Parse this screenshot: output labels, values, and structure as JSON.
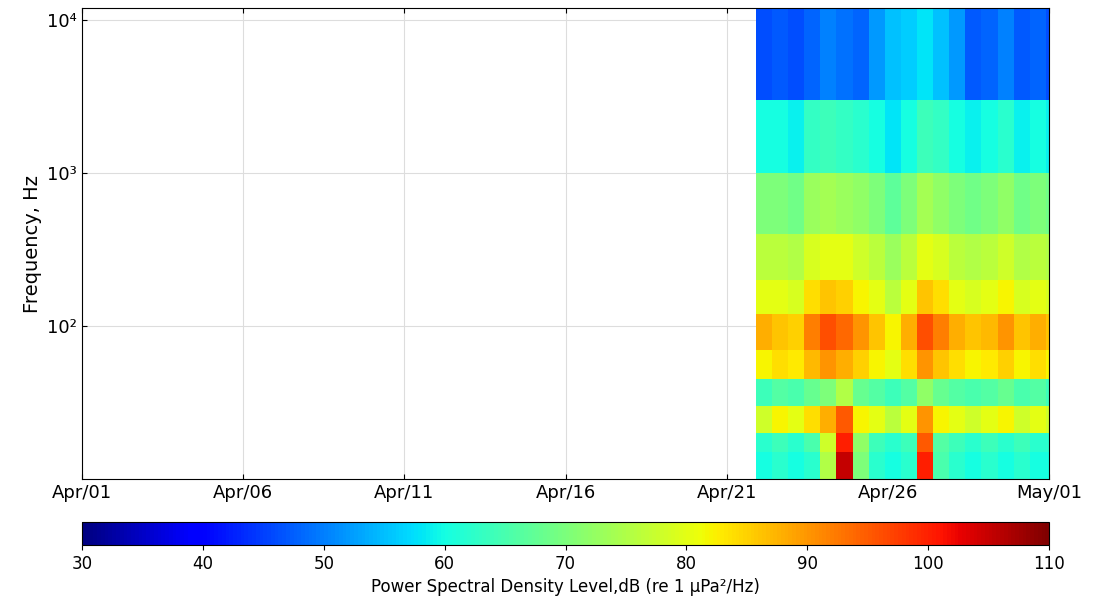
{
  "chart_data": {
    "type": "heatmap",
    "y_label": "Frequency, Hz",
    "log": "y",
    "grid": true,
    "xlim": [
      1,
      31
    ],
    "xticks": [
      {
        "value": 1,
        "label": "Apr/01"
      },
      {
        "value": 6,
        "label": "Apr/06"
      },
      {
        "value": 11,
        "label": "Apr/11"
      },
      {
        "value": 16,
        "label": "Apr/16"
      },
      {
        "value": 21,
        "label": "Apr/21"
      },
      {
        "value": 26,
        "label": "Apr/26"
      },
      {
        "value": 31,
        "label": "May/01"
      }
    ],
    "ylim": [
      10,
      12000
    ],
    "yticks": [
      {
        "value": 100,
        "label": "10²"
      },
      {
        "value": 1000,
        "label": "10³"
      },
      {
        "value": 10000,
        "label": "10⁴"
      }
    ],
    "x_edges": [
      21.9,
      22.4,
      22.9,
      23.4,
      23.9,
      24.4,
      24.9,
      25.4,
      25.9,
      26.4,
      26.9,
      27.4,
      27.9,
      28.4,
      28.9,
      29.4,
      29.9,
      30.4,
      30.9,
      31.0
    ],
    "y_edges": [
      10,
      15,
      20,
      30,
      45,
      70,
      120,
      200,
      400,
      1000,
      3000,
      12000
    ],
    "cells": [
      [
        60,
        62,
        60,
        62,
        75,
        105,
        70,
        62,
        60,
        62,
        100,
        65,
        62,
        60,
        62,
        60,
        62,
        60,
        60
      ],
      [
        62,
        64,
        62,
        65,
        78,
        100,
        72,
        64,
        62,
        64,
        95,
        66,
        64,
        62,
        64,
        62,
        64,
        62,
        62
      ],
      [
        78,
        82,
        80,
        84,
        88,
        95,
        82,
        80,
        76,
        80,
        90,
        82,
        80,
        78,
        80,
        82,
        78,
        80,
        78
      ],
      [
        64,
        66,
        65,
        68,
        70,
        75,
        68,
        66,
        64,
        66,
        72,
        68,
        66,
        65,
        66,
        68,
        65,
        66,
        64
      ],
      [
        82,
        84,
        83,
        87,
        90,
        88,
        85,
        82,
        80,
        84,
        90,
        86,
        84,
        82,
        83,
        85,
        82,
        84,
        82
      ],
      [
        88,
        86,
        85,
        92,
        96,
        94,
        90,
        86,
        82,
        88,
        96,
        92,
        88,
        86,
        87,
        90,
        86,
        88,
        86
      ],
      [
        80,
        80,
        79,
        84,
        86,
        85,
        82,
        80,
        76,
        80,
        86,
        84,
        80,
        79,
        80,
        82,
        79,
        80,
        79
      ],
      [
        76,
        76,
        75,
        79,
        80,
        80,
        78,
        76,
        73,
        76,
        80,
        79,
        76,
        75,
        76,
        78,
        75,
        76,
        75
      ],
      [
        70,
        70,
        69,
        73,
        74,
        73,
        72,
        70,
        67,
        70,
        74,
        72,
        70,
        69,
        70,
        72,
        69,
        70,
        69
      ],
      [
        60,
        60,
        59,
        63,
        64,
        63,
        62,
        60,
        58,
        60,
        64,
        63,
        60,
        59,
        60,
        62,
        59,
        60,
        59
      ],
      [
        46,
        47,
        46,
        48,
        50,
        49,
        48,
        52,
        55,
        56,
        58,
        55,
        52,
        47,
        48,
        50,
        47,
        48,
        46
      ]
    ],
    "colorbar": {
      "label": "Power Spectral Density Level,dB (re 1 μPa²/Hz)",
      "range": [
        30,
        110
      ],
      "ticks": [
        30,
        40,
        50,
        60,
        70,
        80,
        90,
        100,
        110
      ]
    }
  }
}
